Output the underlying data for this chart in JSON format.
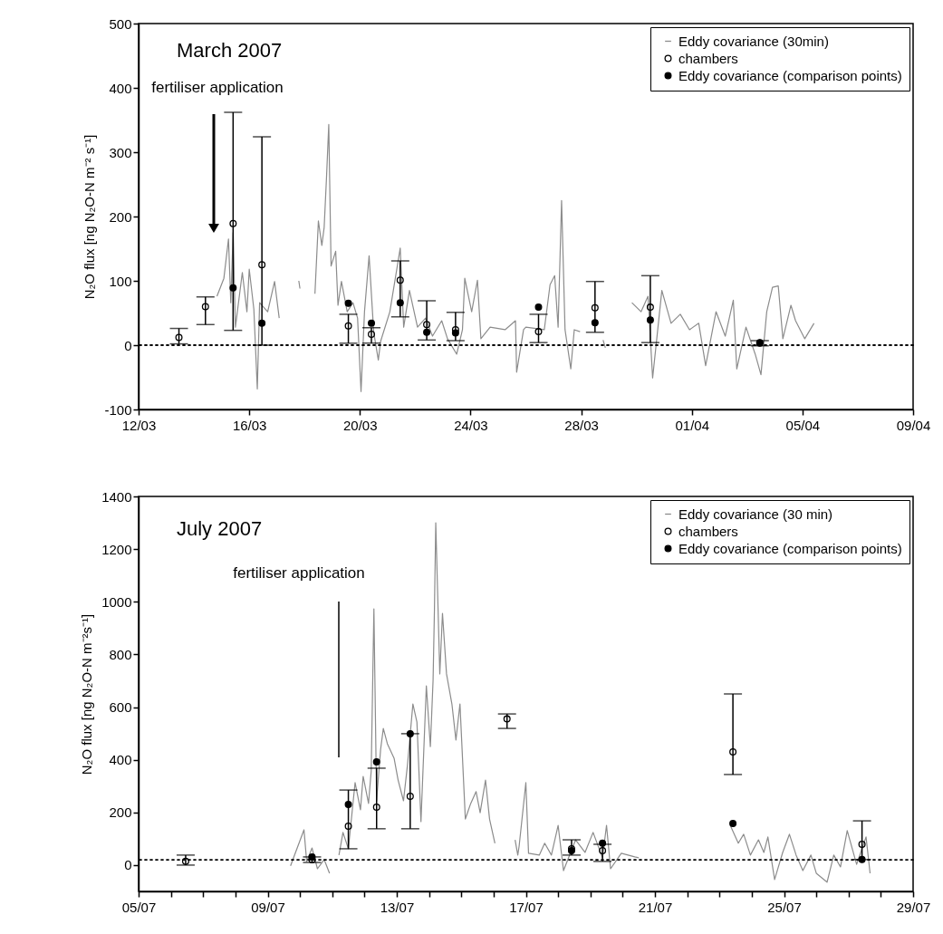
{
  "chart_data": [
    {
      "type": "line",
      "title": "March 2007",
      "ylabel": "N₂O flux [ng N₂O-N m⁻² s⁻¹]",
      "xlim": [
        "2007-03-12",
        "2007-04-09"
      ],
      "xticks": [
        {
          "value": "2007-03-12",
          "label": "12/03"
        },
        {
          "value": "2007-03-16",
          "label": "16/03"
        },
        {
          "value": "2007-03-20",
          "label": "20/03"
        },
        {
          "value": "2007-03-24",
          "label": "24/03"
        },
        {
          "value": "2007-03-28",
          "label": "28/03"
        },
        {
          "value": "2007-04-01",
          "label": "01/04"
        },
        {
          "value": "2007-04-05",
          "label": "05/04"
        },
        {
          "value": "2007-04-09",
          "label": "09/04"
        }
      ],
      "ylim": [
        -100,
        500
      ],
      "yticks": [
        -100,
        0,
        100,
        200,
        300,
        400,
        500
      ],
      "legend": "top right",
      "series": [
        {
          "name": "Eddy covariance (30min)",
          "color": "#8c8c8c",
          "x": [
            "2007-03-14T20:00",
            "2007-03-15T02:00",
            "2007-03-15T06:00",
            "2007-03-15T08:00",
            "2007-03-15T10:00",
            "2007-03-15T12:00",
            "2007-03-15T18:00",
            "2007-03-15T22:00",
            "2007-03-16T00:00",
            "2007-03-16T04:00",
            "2007-03-16T07:00",
            "2007-03-16T09:00",
            "2007-03-16T16:00",
            "2007-03-16T22:00",
            "2007-03-17T02:00",
            "2007-03-17T12:00",
            "2007-03-17T19:00",
            "2007-03-17T20:00",
            "2007-03-18T03:00",
            "2007-03-18T09:00",
            "2007-03-18T12:00",
            "2007-03-18T15:00",
            "2007-03-18T17:00",
            "2007-03-18T19:00",
            "2007-03-18T21:00",
            "2007-03-18T23:00",
            "2007-03-19T03:00",
            "2007-03-19T05:00",
            "2007-03-19T08:00",
            "2007-03-19T13:00",
            "2007-03-19T18:00",
            "2007-03-19T22:00",
            "2007-03-20T01:00",
            "2007-03-20T04:00",
            "2007-03-20T08:00",
            "2007-03-20T12:00",
            "2007-03-20T16:00",
            "2007-03-20T18:00",
            "2007-03-21T02:00",
            "2007-03-21T11:00",
            "2007-03-21T14:00",
            "2007-03-21T19:00",
            "2007-03-22T02:00",
            "2007-03-22T09:00",
            "2007-03-22T15:00",
            "2007-03-22T23:00",
            "2007-03-23T04:00",
            "2007-03-23T12:00",
            "2007-03-23T17:00",
            "2007-03-23T19:00",
            "2007-03-24T01:00",
            "2007-03-24T06:00",
            "2007-03-24T09:00",
            "2007-03-24T17:00",
            "2007-03-25T06:00",
            "2007-03-25T15:00",
            "2007-03-25T16:00",
            "2007-03-25T22:00",
            "2007-03-26T00:00",
            "2007-03-26T16:00",
            "2007-03-26T21:00",
            "2007-03-27T01:00",
            "2007-03-27T04:00",
            "2007-03-27T07:00",
            "2007-03-27T10:00",
            "2007-03-27T15:00",
            "2007-03-27T18:00",
            "2007-03-27T23:00",
            "2007-03-28T08:00",
            "2007-03-28T19:00",
            "2007-03-28T21:00",
            "2007-03-29T08:00",
            "2007-03-29T20:00",
            "2007-03-30T04:00",
            "2007-03-30T10:00",
            "2007-03-30T14:00",
            "2007-03-30T22:00",
            "2007-03-31T06:00",
            "2007-03-31T14:00",
            "2007-03-31T22:00",
            "2007-04-01T06:00",
            "2007-04-01T12:00",
            "2007-04-01T21:00",
            "2007-04-02T05:00",
            "2007-04-02T12:00",
            "2007-04-02T15:00",
            "2007-04-02T23:00",
            "2007-04-03T07:00",
            "2007-04-03T12:00",
            "2007-04-03T17:00",
            "2007-04-03T22:00",
            "2007-04-04T03:00",
            "2007-04-04T07:00",
            "2007-04-04T14:00",
            "2007-04-04T18:00",
            "2007-04-05T02:00",
            "2007-04-05T10:00"
          ],
          "values": [
            76,
            104,
            165,
            66,
            175,
            28,
            113,
            52,
            118,
            56,
            -68,
            66,
            52,
            99,
            42,
            null,
            100,
            88,
            null,
            80,
            193,
            155,
            183,
            259,
            343,
            123,
            146,
            62,
            99,
            52,
            66,
            42,
            -72,
            52,
            139,
            20,
            -23,
            6,
            52,
            151,
            28,
            85,
            28,
            42,
            14,
            38,
            10,
            -14,
            24,
            104,
            52,
            101,
            10,
            28,
            24,
            38,
            -42,
            24,
            28,
            24,
            94,
            108,
            28,
            225,
            24,
            -37,
            24,
            21,
            null,
            8,
            -4,
            null,
            66,
            52,
            76,
            -51,
            85,
            34,
            48,
            24,
            34,
            -32,
            52,
            14,
            70,
            -37,
            28,
            -14,
            -46,
            52,
            90,
            92,
            10,
            62,
            38,
            10,
            34
          ]
        },
        {
          "type": "scatter",
          "name": "chambers",
          "color": "#000000",
          "marker": "circle",
          "x": [
            "2007-03-13T11:00",
            "2007-03-14T10:00",
            "2007-03-15T10:00",
            "2007-03-16T11:00",
            "2007-03-19T14:00",
            "2007-03-20T10:00",
            "2007-03-21T11:00",
            "2007-03-22T10:00",
            "2007-03-23T11:00",
            "2007-03-26T11:00",
            "2007-03-28T12:00",
            "2007-03-30T12:00",
            "2007-04-03T11:00"
          ],
          "values": [
            12,
            60,
            189,
            125,
            30,
            17,
            101,
            32,
            24,
            21,
            58,
            59,
            3
          ],
          "errors": [
            [
              2,
              26
            ],
            [
              32,
              75
            ],
            [
              23,
              362
            ],
            [
              0,
              324
            ],
            [
              3,
              48
            ],
            [
              3,
              27
            ],
            [
              44,
              131
            ],
            [
              8,
              69
            ],
            [
              7,
              51
            ],
            [
              4,
              48
            ],
            [
              20,
              99
            ],
            [
              4,
              108
            ],
            [
              -1,
              7
            ]
          ]
        },
        {
          "type": "scatter",
          "name": "Eddy covariance (comparison points)",
          "color": "#000000",
          "marker": "circle",
          "x": [
            "2007-03-15T10:00",
            "2007-03-16T11:00",
            "2007-03-19T14:00",
            "2007-03-20T10:00",
            "2007-03-21T11:00",
            "2007-03-22T10:00",
            "2007-03-23T11:00",
            "2007-03-26T11:00",
            "2007-03-28T12:00",
            "2007-03-30T12:00",
            "2007-04-03T11:00"
          ],
          "values": [
            89,
            34,
            65,
            34,
            66,
            20,
            19,
            59,
            35,
            39,
            4
          ]
        }
      ],
      "ref_lines": [
        {
          "axis": "y",
          "value": 0,
          "line_style": "dotted",
          "color": "#000000"
        }
      ],
      "annotations": [
        "fertiliser application"
      ]
    },
    {
      "type": "line",
      "title": "July 2007",
      "ylabel": "N₂O flux [ng N₂O-N m⁻²s⁻¹]",
      "xlim": [
        "2007-07-05",
        "2007-07-29"
      ],
      "xticks": [
        {
          "value": "2007-07-05",
          "label": "05/07"
        },
        {
          "value": "2007-07-06",
          "label": null
        },
        {
          "value": "2007-07-07",
          "label": null
        },
        {
          "value": "2007-07-08",
          "label": null
        },
        {
          "value": "2007-07-09",
          "label": "09/07"
        },
        {
          "value": "2007-07-10",
          "label": null
        },
        {
          "value": "2007-07-11",
          "label": null
        },
        {
          "value": "2007-07-12",
          "label": null
        },
        {
          "value": "2007-07-13",
          "label": "13/07"
        },
        {
          "value": "2007-07-14",
          "label": null
        },
        {
          "value": "2007-07-15",
          "label": null
        },
        {
          "value": "2007-07-16",
          "label": null
        },
        {
          "value": "2007-07-17",
          "label": "17/07"
        },
        {
          "value": "2007-07-18",
          "label": null
        },
        {
          "value": "2007-07-19",
          "label": null
        },
        {
          "value": "2007-07-20",
          "label": null
        },
        {
          "value": "2007-07-21",
          "label": "21/07"
        },
        {
          "value": "2007-07-22",
          "label": null
        },
        {
          "value": "2007-07-23",
          "label": null
        },
        {
          "value": "2007-07-24",
          "label": null
        },
        {
          "value": "2007-07-25",
          "label": "25/07"
        },
        {
          "value": "2007-07-26",
          "label": null
        },
        {
          "value": "2007-07-27",
          "label": null
        },
        {
          "value": "2007-07-28",
          "label": null
        },
        {
          "value": "2007-07-29",
          "label": "29/07"
        }
      ],
      "ylim": [
        -100,
        1400
      ],
      "yticks": [
        0,
        200,
        400,
        600,
        800,
        1000,
        1200,
        1400
      ],
      "legend": "top right",
      "series": [
        {
          "name": "Eddy covariance (30 min)",
          "color": "#8c8c8c",
          "x": [
            "2007-07-09T17:00",
            "2007-07-10T03:00",
            "2007-07-10T05:00",
            "2007-07-10T09:00",
            "2007-07-10T13:00",
            "2007-07-10T18:00",
            "2007-07-10T22:00",
            "2007-07-11T00:00",
            "2007-07-11T05:00",
            "2007-07-11T08:00",
            "2007-07-11T12:00",
            "2007-07-11T17:00",
            "2007-07-11T21:00",
            "2007-07-11T23:00",
            "2007-07-12T03:00",
            "2007-07-12T05:00",
            "2007-07-12T07:00",
            "2007-07-12T09:00",
            "2007-07-12T12:00",
            "2007-07-12T14:00",
            "2007-07-12T17:00",
            "2007-07-12T22:00",
            "2007-07-13T01:00",
            "2007-07-13T05:00",
            "2007-07-13T08:00",
            "2007-07-13T12:00",
            "2007-07-13T15:00",
            "2007-07-13T18:00",
            "2007-07-13T22:00",
            "2007-07-14T01:00",
            "2007-07-14T03:00",
            "2007-07-14T04:00",
            "2007-07-14T05:00",
            "2007-07-14T08:00",
            "2007-07-14T10:00",
            "2007-07-14T13:00",
            "2007-07-14T17:00",
            "2007-07-14T20:00",
            "2007-07-14T23:00",
            "2007-07-15T03:00",
            "2007-07-15T07:00",
            "2007-07-15T11:00",
            "2007-07-15T14:00",
            "2007-07-15T18:00",
            "2007-07-15T21:00",
            "2007-07-16T01:00",
            "2007-07-16T08:00",
            "2007-07-16T16:00",
            "2007-07-16T18:00",
            "2007-07-16T19:00",
            "2007-07-17T00:00",
            "2007-07-17T02:00",
            "2007-07-17T10:00",
            "2007-07-17T14:00",
            "2007-07-17T19:00",
            "2007-07-18T00:00",
            "2007-07-18T04:00",
            "2007-07-18T13:00",
            "2007-07-18T20:00",
            "2007-07-19T02:00",
            "2007-07-19T09:00",
            "2007-07-19T12:00",
            "2007-07-19T15:00",
            "2007-07-19T23:00",
            "2007-07-20T09:00",
            "2007-07-20T12:00",
            "2007-07-22T00:00",
            "2007-07-23T08:00",
            "2007-07-23T14:00",
            "2007-07-23T18:00",
            "2007-07-23T23:00",
            "2007-07-24T05:00",
            "2007-07-24T09:00",
            "2007-07-24T12:00",
            "2007-07-24T17:00",
            "2007-07-24T23:00",
            "2007-07-25T04:00",
            "2007-07-25T09:00",
            "2007-07-25T14:00",
            "2007-07-25T20:00",
            "2007-07-26T00:00",
            "2007-07-26T08:00",
            "2007-07-26T13:00",
            "2007-07-26T18:00",
            "2007-07-26T23:00",
            "2007-07-27T06:00",
            "2007-07-27T13:00",
            "2007-07-27T16:00"
          ],
          "values": [
            -3,
            134,
            14,
            65,
            -14,
            21,
            -31,
            null,
            38,
            124,
            62,
            313,
            210,
            337,
            234,
            358,
            973,
            244,
            440,
            519,
            461,
            406,
            323,
            244,
            382,
            612,
            543,
            165,
            681,
            450,
            702,
            966,
            1300,
            726,
            956,
            726,
            612,
            475,
            612,
            175,
            234,
            279,
            199,
            323,
            175,
            83,
            null,
            96,
            38,
            72,
            313,
            45,
            38,
            83,
            38,
            151,
            -21,
            96,
            48,
            124,
            28,
            151,
            -14,
            45,
            31,
            28,
            null,
            151,
            83,
            117,
            38,
            96,
            48,
            107,
            -55,
            48,
            117,
            38,
            -21,
            38,
            -31,
            -65,
            38,
            -7,
            131,
            3,
            107,
            -31
          ]
        },
        {
          "type": "scatter",
          "name": "chambers",
          "color": "#000000",
          "marker": "circle",
          "x": [
            "2007-07-06T11:00",
            "2007-07-10T09:00",
            "2007-07-11T12:00",
            "2007-07-12T09:00",
            "2007-07-13T10:00",
            "2007-07-16T10:00",
            "2007-07-18T10:00",
            "2007-07-19T09:00",
            "2007-07-23T10:00",
            "2007-07-27T10:00"
          ],
          "values": [
            14,
            20,
            148,
            220,
            261,
            555,
            62,
            55,
            430,
            79
          ],
          "errors": [
            [
              0,
              38
            ],
            [
              10,
              31
            ],
            [
              62,
              285
            ],
            [
              138,
              368
            ],
            [
              138,
              499
            ],
            [
              519,
              574
            ],
            [
              38,
              96
            ],
            [
              14,
              79
            ],
            [
              344,
              650
            ],
            [
              21,
              168
            ]
          ]
        },
        {
          "type": "scatter",
          "name": "Eddy covariance (comparison points)",
          "color": "#000000",
          "marker": "circle",
          "x": [
            "2007-07-10T09:00",
            "2007-07-11T12:00",
            "2007-07-12T09:00",
            "2007-07-13T10:00",
            "2007-07-18T10:00",
            "2007-07-19T09:00",
            "2007-07-23T10:00",
            "2007-07-27T10:00"
          ],
          "values": [
            31,
            230,
            392,
            499,
            55,
            83,
            158,
            21
          ]
        }
      ],
      "ref_lines": [
        {
          "axis": "y",
          "value": 20,
          "line_style": "dotted",
          "color": "#000000"
        }
      ],
      "annotations": [
        "fertiliser application"
      ]
    }
  ]
}
